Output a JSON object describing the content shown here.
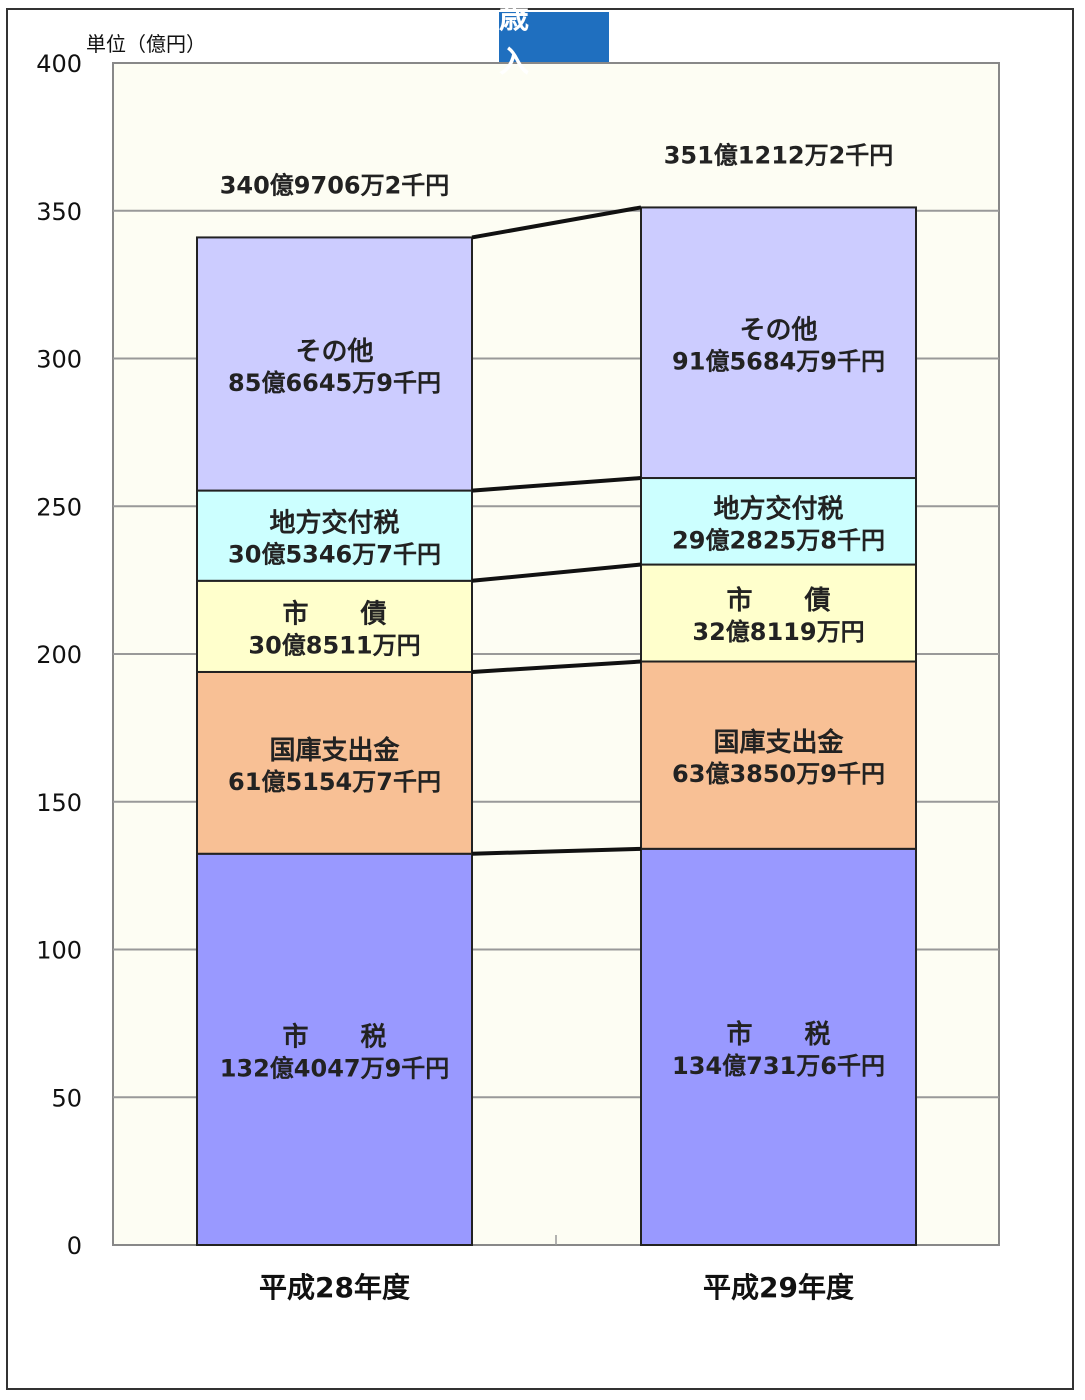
{
  "page": {
    "unit_label": "単位（億円）",
    "title": "歳 入"
  },
  "chart_data": {
    "type": "bar",
    "stacked": true,
    "title": "歳 入",
    "ylabel": "単位（億円）",
    "ylim": [
      0,
      400
    ],
    "yticks": [
      0,
      50,
      100,
      150,
      200,
      250,
      300,
      350,
      400
    ],
    "grid": true,
    "categories": [
      "平成28年度",
      "平成29年度"
    ],
    "totals": [
      340.97062,
      351.12122
    ],
    "total_labels": [
      "340億9706万2千円",
      "351億1212万2千円"
    ],
    "series": [
      {
        "name": "市　　税",
        "color": "#9999ff",
        "values": [
          132.40479,
          134.07316
        ],
        "labels": [
          "132億4047万9千円",
          "134億731万6千円"
        ]
      },
      {
        "name": "国庫支出金",
        "color": "#f8c095",
        "values": [
          61.51547,
          63.38509
        ],
        "labels": [
          "61億5154万7千円",
          "63億3850万9千円"
        ]
      },
      {
        "name": "市　　債",
        "color": "#ffffcc",
        "values": [
          30.8511,
          32.8119
        ],
        "labels": [
          "30億8511万円",
          "32億8119万円"
        ]
      },
      {
        "name": "地方交付税",
        "color": "#ccffff",
        "values": [
          30.53467,
          29.28258
        ],
        "labels": [
          "30億5346万7千円",
          "29億2825万8千円"
        ]
      },
      {
        "name": "その他",
        "color": "#ccccff",
        "values": [
          85.66459,
          91.56849
        ],
        "labels": [
          "85億6645万9千円",
          "91億5684万9千円"
        ]
      }
    ]
  }
}
